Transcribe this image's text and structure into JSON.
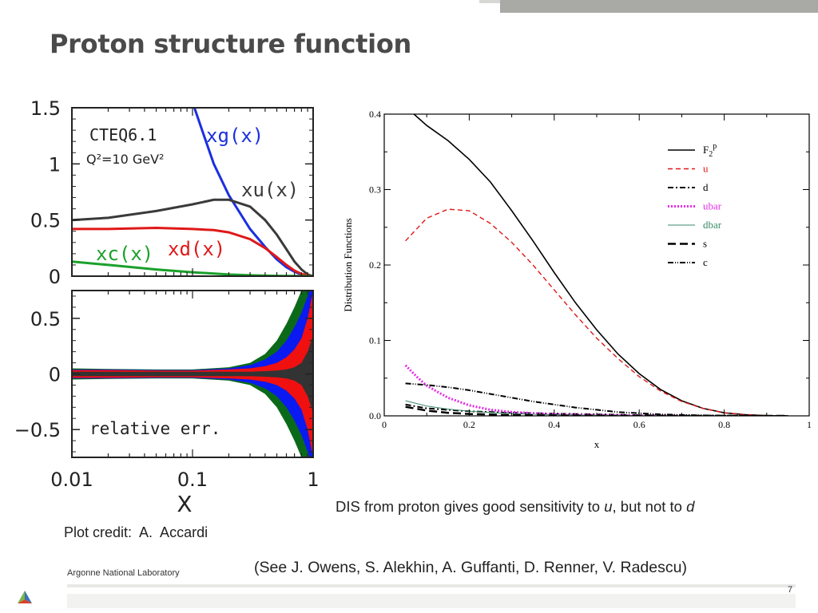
{
  "slide": {
    "title": "Proton structure function",
    "caption_prefix": "DIS from proton gives good sensitivity to ",
    "caption_u": "u",
    "caption_middle": ", but not to ",
    "caption_d": "d",
    "credit": "Plot credit:  A.  Accardi",
    "references": "(See J. Owens, S. Alekhin, A. Guffanti, D. Renner, V. Radescu)",
    "footer_org": "Argonne National Laboratory",
    "page_number": "7",
    "colors": {
      "title": "#4a4a4a",
      "band": "#a9aaa6",
      "logo_green": "#7ab648",
      "logo_blue": "#3b6fb6",
      "logo_red": "#d9412b"
    }
  },
  "chart_data": [
    {
      "type": "line",
      "title": "",
      "annotation_pdf": "CTEQ6.1",
      "annotation_scale": "Q²=10 GeV²",
      "xlabel": "X",
      "ylabel": "",
      "x_scale": "log",
      "xlim": [
        0.01,
        1
      ],
      "ylim": [
        0,
        1.5
      ],
      "x_ticks": [
        "0.01",
        "0.1",
        "1"
      ],
      "y_ticks": [
        "0",
        "0.5",
        "1",
        "1.5"
      ],
      "series": [
        {
          "name": "xg(x)",
          "color": "#1a2fe0",
          "x": [
            0.1,
            0.12,
            0.15,
            0.2,
            0.3,
            0.4,
            0.5,
            0.6,
            0.7,
            0.8,
            0.9,
            1.0
          ],
          "y": [
            1.55,
            1.3,
            1.0,
            0.72,
            0.42,
            0.26,
            0.15,
            0.08,
            0.04,
            0.015,
            0.005,
            0.0
          ]
        },
        {
          "name": "xu(x)",
          "color": "#3a3a3a",
          "x": [
            0.01,
            0.02,
            0.05,
            0.1,
            0.15,
            0.2,
            0.3,
            0.4,
            0.5,
            0.6,
            0.7,
            0.8,
            0.9,
            1.0
          ],
          "y": [
            0.5,
            0.52,
            0.58,
            0.64,
            0.68,
            0.68,
            0.62,
            0.5,
            0.37,
            0.24,
            0.13,
            0.06,
            0.015,
            0.0
          ]
        },
        {
          "name": "xd(x)",
          "color": "#e01818",
          "x": [
            0.01,
            0.02,
            0.05,
            0.1,
            0.15,
            0.2,
            0.3,
            0.4,
            0.5,
            0.6,
            0.7,
            0.8,
            0.9,
            1.0
          ],
          "y": [
            0.42,
            0.42,
            0.43,
            0.42,
            0.41,
            0.39,
            0.33,
            0.25,
            0.17,
            0.1,
            0.05,
            0.02,
            0.005,
            0.0
          ]
        },
        {
          "name": "xc(x)",
          "color": "#1aa02a",
          "x": [
            0.01,
            0.02,
            0.05,
            0.1,
            0.2,
            0.3,
            0.5,
            1.0
          ],
          "y": [
            0.13,
            0.1,
            0.06,
            0.035,
            0.015,
            0.008,
            0.003,
            0.0
          ]
        }
      ]
    },
    {
      "type": "area",
      "title": "",
      "annotation": "relative err.",
      "xlabel": "X",
      "ylabel": "",
      "x_scale": "log",
      "xlim": [
        0.01,
        1
      ],
      "ylim": [
        -0.75,
        0.75
      ],
      "x_ticks": [
        "0.01",
        "0.1",
        "1"
      ],
      "y_ticks": [
        "−0.5",
        "0",
        "0.5"
      ],
      "x": [
        0.01,
        0.02,
        0.05,
        0.1,
        0.2,
        0.3,
        0.4,
        0.5,
        0.6,
        0.7,
        0.8,
        0.9,
        1.0
      ],
      "series": [
        {
          "name": "",
          "color": "#0a6a1a",
          "half_width": [
            0.05,
            0.045,
            0.04,
            0.04,
            0.06,
            0.1,
            0.18,
            0.3,
            0.45,
            0.6,
            0.75,
            0.9,
            1.0
          ]
        },
        {
          "name": "",
          "color": "#0a1af0",
          "half_width": [
            0.04,
            0.04,
            0.035,
            0.035,
            0.05,
            0.08,
            0.13,
            0.2,
            0.3,
            0.42,
            0.55,
            0.7,
            0.85
          ]
        },
        {
          "name": "",
          "color": "#f01010",
          "half_width": [
            0.035,
            0.035,
            0.03,
            0.03,
            0.04,
            0.05,
            0.07,
            0.1,
            0.15,
            0.22,
            0.32,
            0.5,
            0.75
          ]
        },
        {
          "name": "",
          "color": "#333333",
          "half_width": [
            0.02,
            0.02,
            0.02,
            0.02,
            0.02,
            0.02,
            0.025,
            0.03,
            0.04,
            0.06,
            0.1,
            0.2,
            0.35
          ]
        }
      ]
    },
    {
      "type": "line",
      "title": "",
      "xlabel": "x",
      "ylabel": "Distribution Functions",
      "xlim": [
        0,
        1
      ],
      "ylim": [
        0,
        0.4
      ],
      "x_ticks": [
        "0",
        "0.2",
        "0.4",
        "0.6",
        "0.8",
        "1"
      ],
      "y_ticks": [
        "0.0",
        "0.1",
        "0.2",
        "0.3",
        "0.4"
      ],
      "legend_position": "top-right",
      "series": [
        {
          "name": "F",
          "name_sub": "2",
          "name_sup": "p",
          "color": "#000000",
          "dash": "",
          "x": [
            0.07,
            0.1,
            0.15,
            0.2,
            0.25,
            0.3,
            0.35,
            0.4,
            0.45,
            0.5,
            0.55,
            0.6,
            0.65,
            0.7,
            0.75,
            0.8,
            0.85,
            0.9,
            0.95
          ],
          "y": [
            0.4,
            0.385,
            0.365,
            0.34,
            0.31,
            0.272,
            0.232,
            0.19,
            0.15,
            0.114,
            0.082,
            0.056,
            0.035,
            0.02,
            0.01,
            0.004,
            0.0015,
            0.0003,
            0.0
          ]
        },
        {
          "name": "u",
          "color": "#e01818",
          "dash": "6,4",
          "x": [
            0.05,
            0.1,
            0.15,
            0.2,
            0.25,
            0.3,
            0.35,
            0.4,
            0.45,
            0.5,
            0.55,
            0.6,
            0.65,
            0.7,
            0.75,
            0.8,
            0.85,
            0.9,
            0.95
          ],
          "y": [
            0.232,
            0.262,
            0.274,
            0.272,
            0.255,
            0.23,
            0.2,
            0.167,
            0.134,
            0.103,
            0.076,
            0.052,
            0.033,
            0.019,
            0.01,
            0.004,
            0.0015,
            0.0003,
            0.0
          ]
        },
        {
          "name": "d",
          "color": "#000000",
          "dash": "7,3,2,3",
          "x": [
            0.05,
            0.1,
            0.2,
            0.3,
            0.4,
            0.5,
            0.6,
            0.7,
            0.8,
            0.9,
            0.95
          ],
          "y": [
            0.015,
            0.01,
            0.006,
            0.004,
            0.003,
            0.002,
            0.001,
            0.0005,
            0.0002,
            0.0,
            0.0
          ]
        },
        {
          "name": "ubar",
          "color": "#e82ce8",
          "dash": "2,2",
          "x": [
            0.05,
            0.08,
            0.1,
            0.15,
            0.2,
            0.25,
            0.3,
            0.4,
            0.5,
            0.6,
            0.7
          ],
          "y": [
            0.067,
            0.05,
            0.04,
            0.024,
            0.014,
            0.008,
            0.005,
            0.002,
            0.001,
            0.0003,
            0.0
          ]
        },
        {
          "name": "dbar",
          "color": "#3a8a6a",
          "dash": "",
          "x": [
            0.05,
            0.1,
            0.15,
            0.2,
            0.3,
            0.4,
            0.5,
            0.6,
            0.7
          ],
          "y": [
            0.02,
            0.013,
            0.009,
            0.006,
            0.003,
            0.0015,
            0.0007,
            0.0002,
            0.0
          ]
        },
        {
          "name": "s",
          "color": "#000000",
          "dash": "10,5",
          "x": [
            0.05,
            0.1,
            0.15,
            0.2,
            0.3,
            0.4,
            0.5,
            0.6,
            0.7,
            0.8,
            0.95
          ],
          "y": [
            0.012,
            0.007,
            0.004,
            0.0025,
            0.001,
            0.0005,
            0.0002,
            0.0001,
            0.0,
            0.0,
            0.0
          ]
        },
        {
          "name": "c",
          "color": "#000000",
          "dash": "7,2,1,2,1,2",
          "x": [
            0.05,
            0.1,
            0.15,
            0.2,
            0.25,
            0.3,
            0.35,
            0.4,
            0.45,
            0.5,
            0.55,
            0.6,
            0.65,
            0.7,
            0.75,
            0.8,
            0.85,
            0.9,
            0.95
          ],
          "y": [
            0.043,
            0.041,
            0.038,
            0.034,
            0.029,
            0.024,
            0.019,
            0.015,
            0.011,
            0.008,
            0.005,
            0.0035,
            0.002,
            0.0012,
            0.0006,
            0.0003,
            0.0001,
            0.0,
            0.0
          ]
        }
      ]
    }
  ]
}
